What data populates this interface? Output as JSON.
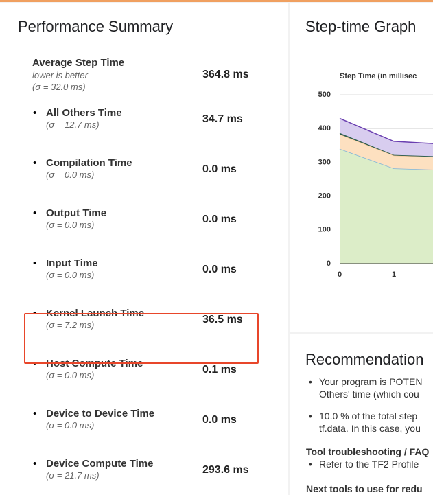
{
  "summary": {
    "title": "Performance Summary",
    "items": [
      {
        "label": "Average Step Time",
        "note": "lower is better",
        "sigma": "(σ = 32.0 ms)",
        "value": "364.8 ms"
      },
      {
        "label": "All Others Time",
        "sigma": "(σ = 12.7 ms)",
        "value": "34.7 ms"
      },
      {
        "label": "Compilation Time",
        "sigma": "(σ = 0.0 ms)",
        "value": "0.0 ms"
      },
      {
        "label": "Output Time",
        "sigma": "(σ = 0.0 ms)",
        "value": "0.0 ms"
      },
      {
        "label": "Input Time",
        "sigma": "(σ = 0.0 ms)",
        "value": "0.0 ms"
      },
      {
        "label": "Kernel Launch Time",
        "sigma": "(σ = 7.2 ms)",
        "value": "36.5 ms"
      },
      {
        "label": "Host Compute Time",
        "sigma": "(σ = 0.0 ms)",
        "value": "0.1 ms"
      },
      {
        "label": "Device to Device Time",
        "sigma": "(σ = 0.0 ms)",
        "value": "0.0 ms"
      },
      {
        "label": "Device Compute Time",
        "sigma": "(σ = 21.7 ms)",
        "value": "293.6 ms"
      }
    ]
  },
  "graph": {
    "title": "Step-time Graph",
    "chart_data": {
      "type": "stacked-area",
      "title": "Step Time (in millisec",
      "x": [
        0,
        1,
        2
      ],
      "xlim": [
        0,
        2
      ],
      "xticks": [
        0,
        1
      ],
      "ylim": [
        0,
        500
      ],
      "yticks": [
        0,
        100,
        200,
        300,
        400,
        500
      ],
      "grid": true,
      "series": [
        {
          "color": "#7db3da",
          "fill": "#dcedc8",
          "values": [
            340,
            282,
            277
          ]
        },
        {
          "color": "#f5c89a",
          "fill": "#fde0c0",
          "values": [
            43,
            38,
            38
          ]
        },
        {
          "color": "#2e5e4e",
          "fill": "#2e5e4e",
          "values": [
            4,
            2,
            2
          ]
        },
        {
          "color": "#6a3fb0",
          "fill": "#d8cdef",
          "values": [
            43,
            40,
            36
          ]
        }
      ]
    }
  },
  "recommendation": {
    "title": "Recommendation",
    "bullets": [
      [
        "Your program is POTEN",
        "Others' time (which cou"
      ],
      [
        "10.0 % of the total step",
        "tf.data. In this case, you"
      ]
    ],
    "faq_title": "Tool troubleshooting / FAQ",
    "faq_bullets": [
      "Refer to the TF2 Profile"
    ],
    "next_title": "Next tools to use for redu"
  }
}
